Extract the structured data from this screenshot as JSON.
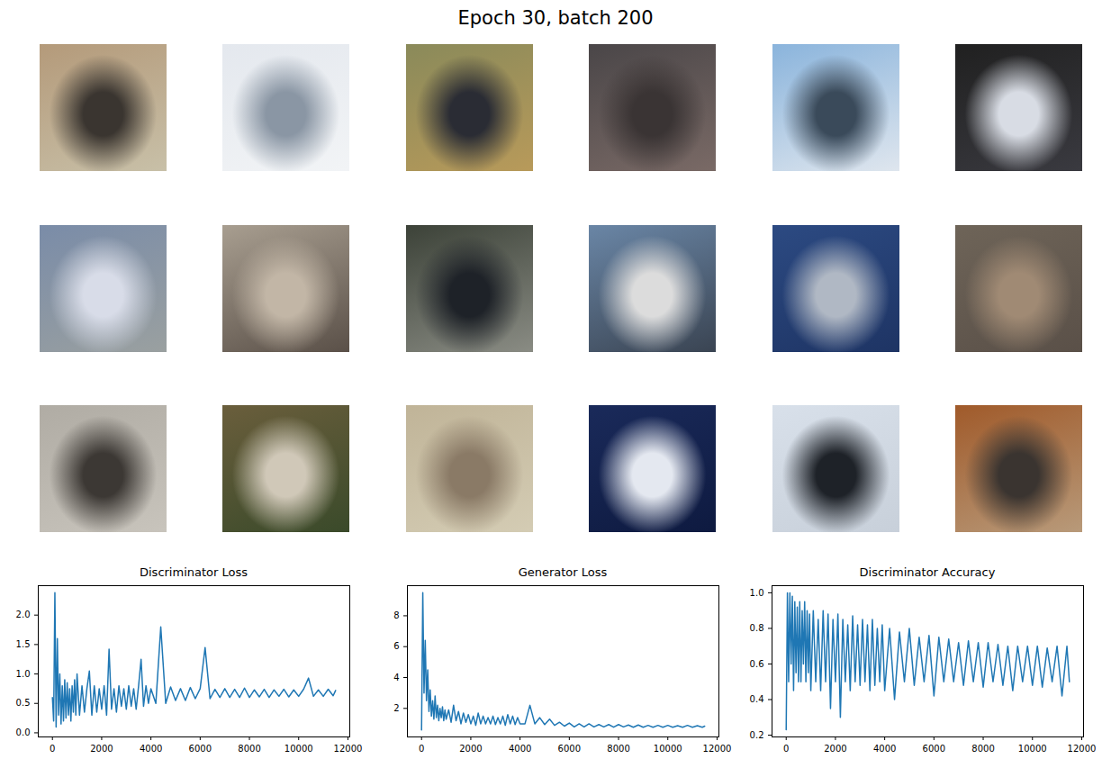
{
  "title": "Epoch 30, batch 200",
  "chart_data": [
    {
      "type": "line",
      "title": "Discriminator Loss",
      "color": "#1f77b4",
      "x": [
        0,
        50,
        100,
        150,
        200,
        250,
        300,
        350,
        400,
        450,
        500,
        550,
        600,
        650,
        700,
        750,
        800,
        850,
        900,
        950,
        1000,
        1100,
        1200,
        1300,
        1400,
        1500,
        1600,
        1700,
        1800,
        1900,
        2000,
        2100,
        2200,
        2300,
        2400,
        2500,
        2600,
        2700,
        2800,
        2900,
        3000,
        3100,
        3200,
        3300,
        3400,
        3500,
        3600,
        3700,
        3800,
        3900,
        4000,
        4200,
        4400,
        4600,
        4800,
        5000,
        5200,
        5400,
        5600,
        5800,
        6000,
        6200,
        6400,
        6600,
        6800,
        7000,
        7200,
        7400,
        7600,
        7800,
        8000,
        8200,
        8400,
        8600,
        8800,
        9000,
        9200,
        9400,
        9600,
        9800,
        10000,
        10200,
        10400,
        10600,
        10800,
        11000,
        11200,
        11400,
        11500
      ],
      "values": [
        0.6,
        0.2,
        2.38,
        0.1,
        1.6,
        0.3,
        1.0,
        0.15,
        0.8,
        0.2,
        0.9,
        0.25,
        0.85,
        0.3,
        0.75,
        0.2,
        0.8,
        0.35,
        0.9,
        0.3,
        1.0,
        0.3,
        0.8,
        0.35,
        0.75,
        1.05,
        0.3,
        0.8,
        0.35,
        0.75,
        0.4,
        0.8,
        0.3,
        1.42,
        0.4,
        0.75,
        0.35,
        0.8,
        0.45,
        0.75,
        0.4,
        0.8,
        0.45,
        0.75,
        0.4,
        0.8,
        1.25,
        0.45,
        0.8,
        0.5,
        0.75,
        0.5,
        1.8,
        0.5,
        0.78,
        0.55,
        0.75,
        0.55,
        0.77,
        0.58,
        0.75,
        1.45,
        0.58,
        0.74,
        0.6,
        0.75,
        0.6,
        0.74,
        0.6,
        0.76,
        0.6,
        0.73,
        0.61,
        0.74,
        0.6,
        0.73,
        0.62,
        0.74,
        0.61,
        0.73,
        0.62,
        0.74,
        0.93,
        0.62,
        0.73,
        0.62,
        0.74,
        0.63,
        0.72
      ],
      "xlim": [
        -575,
        12075
      ],
      "xticks": [
        0,
        2000,
        4000,
        6000,
        8000,
        10000,
        12000
      ],
      "ylim": [
        -0.07,
        2.5
      ],
      "yticks": [
        {
          "value": 0,
          "label": "0.0"
        },
        {
          "value": 0.5,
          "label": "0.5"
        },
        {
          "value": 1,
          "label": "1.0"
        },
        {
          "value": 1.5,
          "label": "1.5"
        },
        {
          "value": 2,
          "label": "2.0"
        }
      ]
    },
    {
      "type": "line",
      "title": "Generator Loss",
      "color": "#1f77b4",
      "x": [
        0,
        50,
        100,
        150,
        200,
        250,
        300,
        350,
        400,
        450,
        500,
        550,
        600,
        650,
        700,
        750,
        800,
        850,
        900,
        950,
        1000,
        1100,
        1200,
        1300,
        1400,
        1500,
        1600,
        1700,
        1800,
        1900,
        2000,
        2100,
        2200,
        2300,
        2400,
        2500,
        2600,
        2700,
        2800,
        2900,
        3000,
        3100,
        3200,
        3300,
        3400,
        3500,
        3600,
        3700,
        3800,
        3900,
        4000,
        4200,
        4400,
        4600,
        4800,
        5000,
        5200,
        5400,
        5600,
        5800,
        6000,
        6200,
        6400,
        6600,
        6800,
        7000,
        7200,
        7400,
        7600,
        7800,
        8000,
        8200,
        8400,
        8600,
        8800,
        9000,
        9200,
        9400,
        9600,
        9800,
        10000,
        10200,
        10400,
        10600,
        10800,
        11000,
        11200,
        11400,
        11500
      ],
      "values": [
        0.6,
        9.5,
        3.0,
        6.4,
        2.5,
        4.5,
        1.8,
        3.2,
        1.5,
        2.5,
        1.3,
        2.8,
        1.4,
        2.2,
        1.2,
        2.0,
        1.4,
        2.1,
        1.2,
        1.9,
        1.3,
        1.9,
        1.1,
        2.2,
        1.2,
        1.8,
        1.0,
        1.7,
        1.1,
        1.6,
        1.0,
        1.5,
        0.9,
        1.7,
        1.0,
        1.5,
        1.0,
        1.4,
        1.0,
        1.5,
        0.95,
        1.4,
        1.0,
        1.5,
        0.9,
        1.6,
        1.0,
        1.5,
        0.95,
        1.4,
        1.0,
        1.0,
        2.2,
        1.0,
        1.4,
        0.95,
        1.3,
        0.9,
        1.1,
        0.85,
        1.05,
        0.8,
        1.0,
        0.8,
        1.0,
        0.8,
        0.95,
        0.8,
        0.95,
        0.78,
        0.95,
        0.8,
        0.92,
        0.78,
        0.92,
        0.78,
        0.9,
        0.78,
        0.9,
        0.78,
        0.9,
        0.78,
        0.88,
        0.78,
        0.9,
        0.78,
        0.88,
        0.78,
        0.85
      ],
      "xlim": [
        -575,
        12075
      ],
      "xticks": [
        0,
        2000,
        4000,
        6000,
        8000,
        10000,
        12000
      ],
      "ylim": [
        0.15,
        9.95
      ],
      "yticks": [
        2,
        4,
        6,
        8
      ]
    },
    {
      "type": "line",
      "title": "Discriminator Accuracy",
      "color": "#1f77b4",
      "x": [
        0,
        50,
        100,
        150,
        200,
        250,
        300,
        350,
        400,
        450,
        500,
        550,
        600,
        650,
        700,
        750,
        800,
        850,
        900,
        950,
        1000,
        1100,
        1200,
        1300,
        1400,
        1500,
        1600,
        1700,
        1800,
        1900,
        2000,
        2100,
        2200,
        2300,
        2400,
        2500,
        2600,
        2700,
        2800,
        2900,
        3000,
        3100,
        3200,
        3300,
        3400,
        3500,
        3600,
        3700,
        3800,
        3900,
        4000,
        4200,
        4400,
        4600,
        4800,
        5000,
        5200,
        5400,
        5600,
        5800,
        6000,
        6200,
        6400,
        6600,
        6800,
        7000,
        7200,
        7400,
        7600,
        7800,
        8000,
        8200,
        8400,
        8600,
        8800,
        9000,
        9200,
        9400,
        9600,
        9800,
        10000,
        10200,
        10400,
        10600,
        10800,
        11000,
        11200,
        11400,
        11500
      ],
      "values": [
        0.23,
        1.0,
        0.5,
        1.0,
        0.6,
        0.98,
        0.45,
        0.95,
        0.55,
        0.92,
        0.5,
        0.95,
        0.5,
        0.9,
        0.6,
        0.95,
        0.5,
        0.9,
        0.55,
        0.88,
        0.45,
        0.9,
        0.5,
        0.85,
        0.45,
        0.9,
        0.5,
        0.88,
        0.35,
        0.85,
        0.5,
        0.88,
        0.3,
        0.85,
        0.5,
        0.82,
        0.45,
        0.87,
        0.5,
        0.82,
        0.48,
        0.85,
        0.5,
        0.82,
        0.45,
        0.85,
        0.48,
        0.8,
        0.5,
        0.82,
        0.45,
        0.8,
        0.4,
        0.78,
        0.5,
        0.8,
        0.48,
        0.75,
        0.5,
        0.76,
        0.42,
        0.75,
        0.5,
        0.74,
        0.5,
        0.72,
        0.48,
        0.73,
        0.5,
        0.72,
        0.47,
        0.72,
        0.5,
        0.71,
        0.48,
        0.7,
        0.45,
        0.7,
        0.5,
        0.7,
        0.48,
        0.7,
        0.47,
        0.69,
        0.5,
        0.7,
        0.42,
        0.7,
        0.5
      ],
      "xlim": [
        -575,
        12075
      ],
      "xticks": [
        0,
        2000,
        4000,
        6000,
        8000,
        10000,
        12000
      ],
      "ylim": [
        0.19,
        1.04
      ],
      "yticks": [
        {
          "value": 0.2,
          "label": "0.2"
        },
        {
          "value": 0.4,
          "label": "0.4"
        },
        {
          "value": 0.6,
          "label": "0.6"
        },
        {
          "value": 0.8,
          "label": "0.8"
        },
        {
          "value": 1,
          "label": "1.0"
        }
      ]
    }
  ]
}
